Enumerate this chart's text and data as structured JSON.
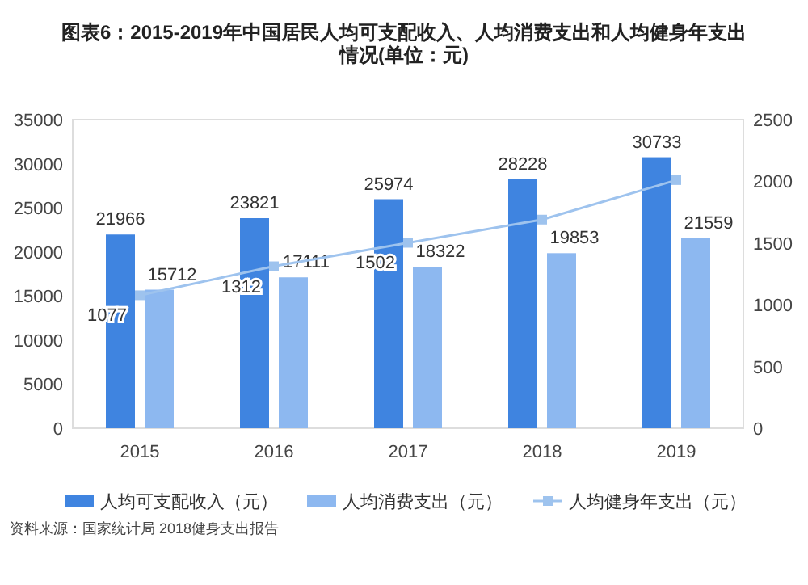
{
  "chart_data": {
    "type": "bar",
    "title": "图表6：2015-2019年中国居民人均可支配收入、人均消费支出和人均健身年支出情况(单位：元)",
    "categories": [
      "2015",
      "2016",
      "2017",
      "2018",
      "2019"
    ],
    "series": [
      {
        "name": "人均可支配收入（元）",
        "color": "#3f84e0",
        "values": [
          21966,
          23821,
          25974,
          28228,
          30733
        ],
        "data_labels": true
      },
      {
        "name": "人均消费支出（元）",
        "color": "#8db8f0",
        "values": [
          15712,
          17111,
          18322,
          19853,
          21559
        ],
        "data_labels": true
      },
      {
        "name": "人均健身年支出（元）",
        "type": "line",
        "axis": "y2",
        "color": "#9ec3ee",
        "marker": "square",
        "values": [
          1077,
          1312,
          1502,
          1690,
          2010
        ],
        "value_labels": [
          "1077",
          "1312",
          "1502",
          null,
          null
        ]
      }
    ],
    "ylim": [
      0,
      35000
    ],
    "yticks": [
      0,
      5000,
      10000,
      15000,
      20000,
      25000,
      30000,
      35000
    ],
    "y2lim": [
      0,
      2500
    ],
    "y2ticks": [
      0,
      500,
      1000,
      1500,
      2000,
      2500
    ],
    "grid": false,
    "legend": "bottom",
    "annotations": [
      "资料来源：国家统计局 2018健身支出报告"
    ]
  }
}
